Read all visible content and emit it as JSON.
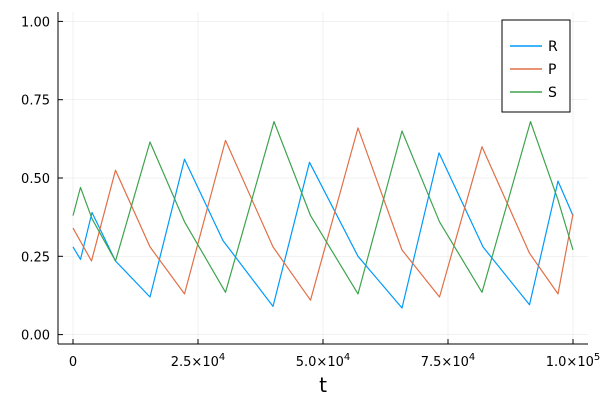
{
  "chart_data": {
    "type": "line",
    "title": "",
    "xlabel": "t",
    "ylabel": "",
    "xlim": [
      -3000,
      103000
    ],
    "ylim": [
      -0.03,
      1.03
    ],
    "x_ticks": [
      {
        "value": 0,
        "label": "0",
        "sup": ""
      },
      {
        "value": 25000,
        "label": "2.5×10",
        "sup": "4"
      },
      {
        "value": 50000,
        "label": "5.0×10",
        "sup": "4"
      },
      {
        "value": 75000,
        "label": "7.5×10",
        "sup": "4"
      },
      {
        "value": 100000,
        "label": "1.0×10",
        "sup": "5"
      }
    ],
    "y_ticks": [
      {
        "value": 0.0,
        "label": "0.00"
      },
      {
        "value": 0.25,
        "label": "0.25"
      },
      {
        "value": 0.5,
        "label": "0.50"
      },
      {
        "value": 0.75,
        "label": "0.75"
      },
      {
        "value": 1.0,
        "label": "1.00"
      }
    ],
    "grid": true,
    "legend_position": "top-right",
    "series": [
      {
        "name": "R",
        "color": "#009af9",
        "points": [
          [
            0,
            0.28
          ],
          [
            1500,
            0.24
          ],
          [
            3800,
            0.39
          ],
          [
            8500,
            0.235
          ],
          [
            15400,
            0.12
          ],
          [
            22300,
            0.56
          ],
          [
            30000,
            0.3
          ],
          [
            40000,
            0.09
          ],
          [
            47300,
            0.55
          ],
          [
            57000,
            0.25
          ],
          [
            65800,
            0.085
          ],
          [
            73200,
            0.58
          ],
          [
            82000,
            0.28
          ],
          [
            91300,
            0.095
          ],
          [
            97000,
            0.49
          ],
          [
            100000,
            0.38
          ]
        ]
      },
      {
        "name": "P",
        "color": "#e26f46",
        "points": [
          [
            0,
            0.34
          ],
          [
            3700,
            0.235
          ],
          [
            8500,
            0.525
          ],
          [
            15400,
            0.28
          ],
          [
            22300,
            0.13
          ],
          [
            30500,
            0.62
          ],
          [
            40000,
            0.28
          ],
          [
            47500,
            0.11
          ],
          [
            57000,
            0.66
          ],
          [
            65800,
            0.27
          ],
          [
            73300,
            0.12
          ],
          [
            81800,
            0.6
          ],
          [
            91300,
            0.26
          ],
          [
            97000,
            0.13
          ],
          [
            100000,
            0.385
          ]
        ]
      },
      {
        "name": "S",
        "color": "#3da44d",
        "points": [
          [
            0,
            0.38
          ],
          [
            1500,
            0.47
          ],
          [
            3800,
            0.37
          ],
          [
            8500,
            0.235
          ],
          [
            15400,
            0.615
          ],
          [
            22300,
            0.36
          ],
          [
            30500,
            0.135
          ],
          [
            40200,
            0.68
          ],
          [
            47500,
            0.38
          ],
          [
            57000,
            0.13
          ],
          [
            65800,
            0.65
          ],
          [
            73300,
            0.36
          ],
          [
            81800,
            0.135
          ],
          [
            91500,
            0.68
          ],
          [
            97000,
            0.43
          ],
          [
            100000,
            0.27
          ]
        ]
      }
    ]
  }
}
